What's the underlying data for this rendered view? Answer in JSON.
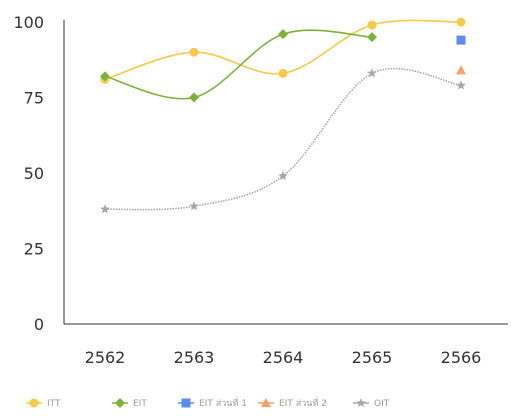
{
  "chart_data": {
    "type": "line",
    "categories": [
      "2562",
      "2563",
      "2564",
      "2565",
      "2566"
    ],
    "yticks": [
      0,
      25,
      50,
      75,
      100
    ],
    "ylim": [
      0,
      100
    ],
    "grid": false,
    "legend_position": "bottom",
    "series": [
      {
        "name": "ITT",
        "color": "#f7c948",
        "marker": "circle",
        "values": [
          81,
          90,
          83,
          99,
          100
        ]
      },
      {
        "name": "EIT",
        "color": "#7bb33a",
        "marker": "diamond",
        "values": [
          82,
          75,
          96,
          95,
          null
        ]
      },
      {
        "name": "EIT ส่วนที่ 1",
        "color": "#5b8def",
        "marker": "square",
        "values": [
          null,
          null,
          null,
          null,
          94
        ]
      },
      {
        "name": "EIT ส่วนที่ 2",
        "color": "#f4a261",
        "marker": "triangle",
        "values": [
          null,
          null,
          null,
          null,
          84
        ]
      },
      {
        "name": "OIT",
        "color": "#a8a8a8",
        "marker": "star",
        "values": [
          38,
          39,
          49,
          83,
          79
        ]
      }
    ]
  }
}
